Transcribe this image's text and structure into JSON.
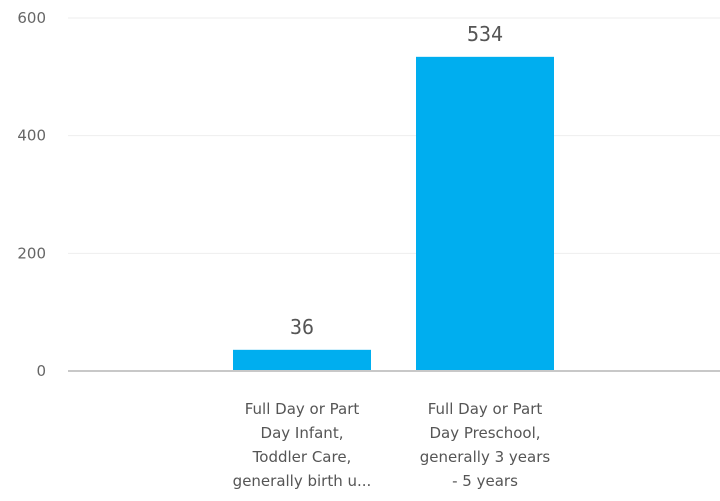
{
  "chart_data": {
    "type": "bar",
    "categories": [
      [
        "Full Day or Part",
        "Day Infant,",
        "Toddler Care,",
        "generally birth u..."
      ],
      [
        "Full Day or Part",
        "Day Preschool,",
        "generally 3 years",
        "- 5 years"
      ]
    ],
    "values": [
      36,
      534
    ],
    "data_labels": [
      "36",
      "534"
    ],
    "ylim": [
      0,
      600
    ],
    "yticks": [
      0,
      200,
      400,
      600
    ],
    "ytick_labels": [
      "0",
      "200",
      "400",
      "600"
    ],
    "grid": true,
    "bar_color": "#00AEEF",
    "title": "",
    "xlabel": "",
    "ylabel": ""
  }
}
